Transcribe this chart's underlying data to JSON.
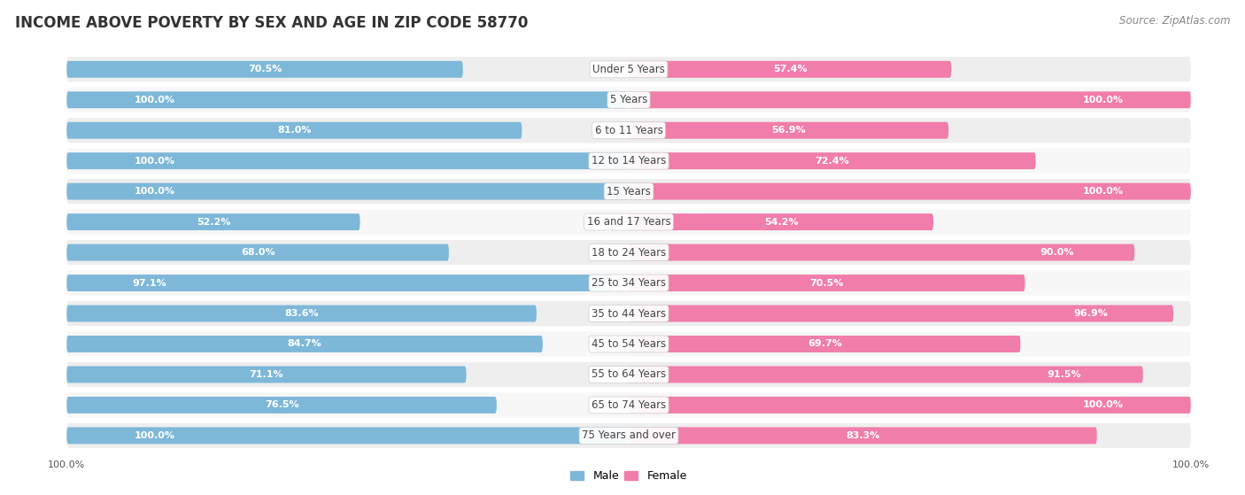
{
  "title": "INCOME ABOVE POVERTY BY SEX AND AGE IN ZIP CODE 58770",
  "source": "Source: ZipAtlas.com",
  "categories": [
    "Under 5 Years",
    "5 Years",
    "6 to 11 Years",
    "12 to 14 Years",
    "15 Years",
    "16 and 17 Years",
    "18 to 24 Years",
    "25 to 34 Years",
    "35 to 44 Years",
    "45 to 54 Years",
    "55 to 64 Years",
    "65 to 74 Years",
    "75 Years and over"
  ],
  "male_values": [
    70.5,
    100.0,
    81.0,
    100.0,
    100.0,
    52.2,
    68.0,
    97.1,
    83.6,
    84.7,
    71.1,
    76.5,
    100.0
  ],
  "female_values": [
    57.4,
    100.0,
    56.9,
    72.4,
    100.0,
    54.2,
    90.0,
    70.5,
    96.9,
    69.7,
    91.5,
    100.0,
    83.3
  ],
  "male_color": "#7eb8d9",
  "male_bg_color": "#d6eaf5",
  "female_color": "#f07daa",
  "female_bg_color": "#fce0ec",
  "male_label": "Male",
  "female_label": "Female",
  "row_bg_color": "#eeeeee",
  "row_alt_bg_color": "#f7f7f7",
  "background_color": "#ffffff",
  "title_fontsize": 12,
  "source_fontsize": 8.5,
  "label_fontsize": 8.5,
  "bar_label_fontsize": 8,
  "axis_label_fontsize": 8
}
